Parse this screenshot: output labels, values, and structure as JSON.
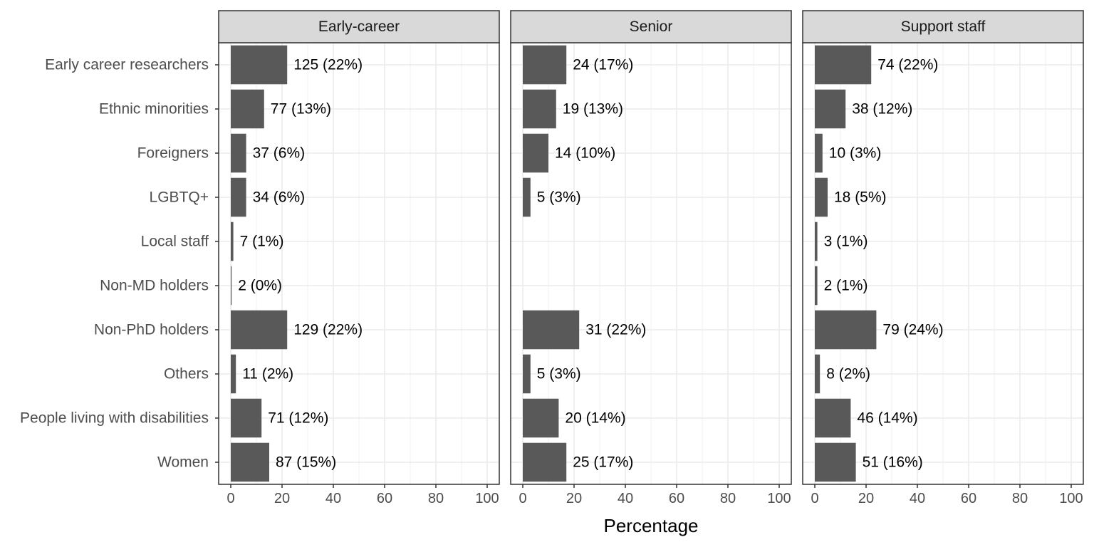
{
  "chart_data": {
    "type": "bar",
    "orientation": "horizontal",
    "xlabel": "Percentage",
    "ylabel": "",
    "xlim": [
      0,
      100
    ],
    "xticks": [
      0,
      20,
      40,
      60,
      80,
      100
    ],
    "grid": true,
    "bar_color": "#595959",
    "categories": [
      "Early career researchers",
      "Ethnic minorities",
      "Foreigners",
      "LGBTQ+",
      "Local staff",
      "Non-MD holders",
      "Non-PhD holders",
      "Others",
      "People living with disabilities",
      "Women"
    ],
    "panels": [
      {
        "title": "Early-career",
        "values": [
          22,
          13,
          6,
          6,
          1,
          0,
          22,
          2,
          12,
          15
        ],
        "labels": [
          "125 (22%)",
          "77 (13%)",
          "37 (6%)",
          "34 (6%)",
          "7 (1%)",
          "2 (0%)",
          "129 (22%)",
          "11 (2%)",
          "71 (12%)",
          "87 (15%)"
        ]
      },
      {
        "title": "Senior",
        "values": [
          17,
          13,
          10,
          3,
          null,
          null,
          22,
          3,
          14,
          17
        ],
        "labels": [
          "24 (17%)",
          "19 (13%)",
          "14 (10%)",
          "5 (3%)",
          null,
          null,
          "31 (22%)",
          "5 (3%)",
          "20 (14%)",
          "25 (17%)"
        ]
      },
      {
        "title": "Support staff",
        "values": [
          22,
          12,
          3,
          5,
          1,
          1,
          24,
          2,
          14,
          16
        ],
        "labels": [
          "74 (22%)",
          "38 (12%)",
          "10 (3%)",
          "18 (5%)",
          "3 (1%)",
          "2 (1%)",
          "79 (24%)",
          "8 (2%)",
          "46 (14%)",
          "51 (16%)"
        ]
      }
    ]
  }
}
